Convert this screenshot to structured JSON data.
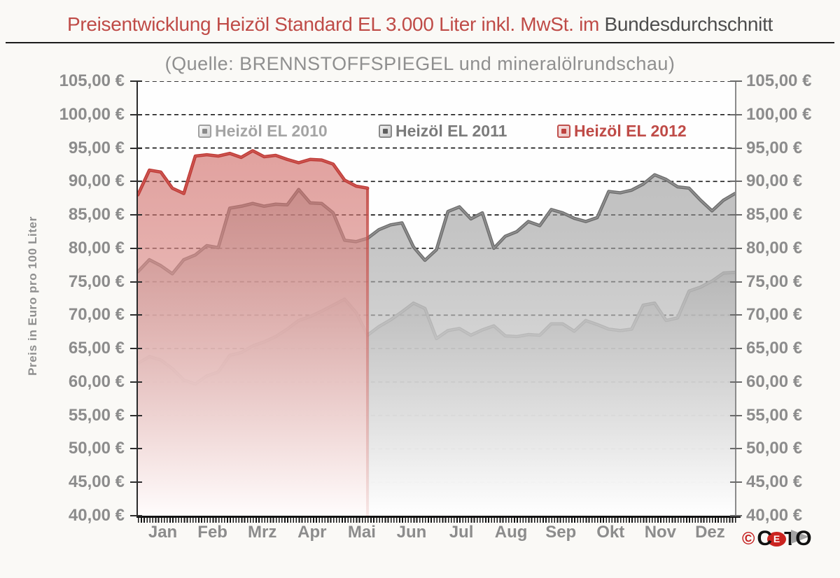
{
  "title": {
    "main": "Preisentwicklung Heizöl Standard EL 3.000 Liter inkl. MwSt. im ",
    "suffix": "Bundesdurchschnitt"
  },
  "subtitle": "(Quelle: BRENNSTOFFSPIEGEL und mineralölrundschau)",
  "colors": {
    "title_red": "#bf4b47",
    "title_dark": "#4d4d4d",
    "axis_label_gray": "#8c8c8c",
    "grid_dash": "#1c1c1c",
    "series_2010": "#9f9f9f",
    "series_2011": "#6b6b6b",
    "series_2012": "#bd3a35"
  },
  "legend": [
    {
      "label": "Heizöl EL 2010",
      "text_color": "#a4a4a4",
      "swatch_border": "#a0a0a0",
      "swatch_dot": "#8a8a8a",
      "swatch_bg1": "#fafafa",
      "swatch_bg2": "#d2d2d2",
      "x": 283
    },
    {
      "label": "Heizöl EL 2011",
      "text_color": "#7b7b7b",
      "swatch_border": "#8a8a8a",
      "swatch_dot": "#5f5f5f",
      "swatch_bg1": "#f2f2f2",
      "swatch_bg2": "#c9c9c9",
      "x": 541
    },
    {
      "label": "Heizöl EL 2012",
      "text_color": "#bf4b47",
      "swatch_border": "#c0504d",
      "swatch_dot": "#bf4340",
      "swatch_bg1": "#f6e3e2",
      "swatch_bg2": "#ecc5c3",
      "x": 796
    }
  ],
  "logo": {
    "copyright": "©",
    "c": "C",
    "e": "E",
    "t": "T",
    "o": "O"
  },
  "chart_data": {
    "type": "area",
    "title": "Preisentwicklung Heizöl Standard EL 3.000 Liter inkl. MwSt. im Bundesdurchschnitt",
    "source_note": "(Quelle: BRENNSTOFFSPIEGEL und mineralölrundschau)",
    "ylabel": "Preis in Euro pro 100 Liter",
    "ylim": [
      40,
      105
    ],
    "ytick_step": 5,
    "y_tick_labels": [
      "105,00 €",
      "100,00 €",
      "95,00 €",
      "90,00 €",
      "85,00 €",
      "80,00 €",
      "75,00 €",
      "70,00 €",
      "65,00 €",
      "60,00 €",
      "55,00 €",
      "50,00 €",
      "45,00 €",
      "40,00 €"
    ],
    "x_categories": [
      "Jan",
      "Feb",
      "Mrz",
      "Apr",
      "Mai",
      "Jun",
      "Jul",
      "Aug",
      "Sep",
      "Okt",
      "Nov",
      "Dez"
    ],
    "x_sampling": "weekly values, week 0 = 1. Januar",
    "grid": "dashed horizontal lines every 5 €",
    "legend_position": "top inside plot",
    "series": [
      {
        "name": "Heizöl EL 2010",
        "color": "#9f9f9f",
        "unit": "EUR pro 100 Liter",
        "values": [
          62.8,
          63.8,
          63.3,
          62.0,
          60.3,
          59.7,
          60.9,
          61.5,
          64.0,
          64.4,
          65.4,
          66.0,
          66.8,
          67.9,
          69.2,
          69.8,
          70.6,
          71.5,
          72.4,
          70.4,
          67.0,
          68.3,
          69.3,
          70.5,
          71.8,
          71.0,
          66.5,
          67.7,
          68.0,
          67.0,
          67.8,
          68.4,
          66.9,
          66.8,
          67.1,
          67.0,
          68.7,
          68.7,
          67.6,
          69.2,
          68.6,
          67.9,
          67.7,
          67.9,
          71.5,
          71.8,
          69.2,
          69.6,
          73.6,
          74.2,
          75.1,
          76.3,
          76.4
        ]
      },
      {
        "name": "Heizöl EL 2011",
        "color": "#6b6b6b",
        "unit": "EUR pro 100 Liter",
        "values": [
          76.5,
          78.3,
          77.4,
          76.2,
          78.3,
          79.0,
          80.4,
          80.1,
          86.0,
          86.3,
          86.7,
          86.3,
          86.6,
          86.5,
          88.8,
          86.8,
          86.7,
          85.3,
          81.2,
          81.0,
          81.5,
          82.8,
          83.5,
          83.8,
          80.2,
          78.2,
          79.8,
          85.5,
          86.2,
          84.4,
          85.3,
          80.0,
          81.8,
          82.5,
          84.0,
          83.4,
          85.8,
          85.3,
          84.5,
          84.0,
          84.6,
          88.5,
          88.3,
          88.7,
          89.6,
          91.0,
          90.3,
          89.2,
          89.0,
          87.2,
          85.6,
          87.2,
          88.2
        ]
      },
      {
        "name": "Heizöl EL 2012",
        "color": "#bd3a35",
        "unit": "EUR pro 100 Liter",
        "note": "Reihe endet Mitte Mai",
        "values": [
          88.0,
          91.7,
          91.4,
          89.0,
          88.2,
          93.8,
          94.0,
          93.8,
          94.2,
          93.6,
          94.6,
          93.7,
          93.9,
          93.3,
          92.8,
          93.3,
          93.2,
          92.6,
          90.2,
          89.3,
          89.0
        ]
      }
    ]
  }
}
